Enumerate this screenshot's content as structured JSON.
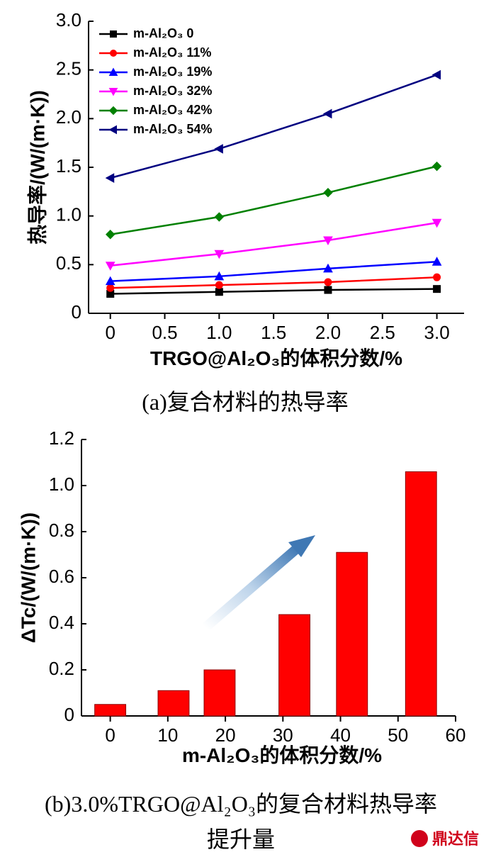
{
  "chart_data": [
    {
      "type": "line",
      "ylabel": "热导率/(W/(m·K))",
      "xlabel": "TRGO@Al₂O₃的体积分数/%",
      "caption": "(a)复合材料的热导率",
      "x": [
        0,
        1.0,
        2.0,
        3.0
      ],
      "xlim": [
        -0.2,
        3.25
      ],
      "ylim": [
        0,
        3.0
      ],
      "x_ticks": [
        "0",
        "0.5",
        "1.0",
        "1.5",
        "2.0",
        "2.5",
        "3.0"
      ],
      "y_ticks": [
        "0",
        "0.5",
        "1.0",
        "1.5",
        "2.0",
        "2.5",
        "3.0"
      ],
      "legend_position": "top-left",
      "series": [
        {
          "name": "m-Al₂O₃ 0",
          "color": "#000000",
          "marker": "square",
          "values": [
            0.2,
            0.22,
            0.24,
            0.25
          ]
        },
        {
          "name": "m-Al₂O₃ 11%",
          "color": "#ff0000",
          "marker": "circle",
          "values": [
            0.26,
            0.29,
            0.32,
            0.37
          ]
        },
        {
          "name": "m-Al₂O₃ 19%",
          "color": "#0000ff",
          "marker": "triangle-up",
          "values": [
            0.33,
            0.38,
            0.46,
            0.53
          ]
        },
        {
          "name": "m-Al₂O₃ 32%",
          "color": "#ff00ff",
          "marker": "triangle-down",
          "values": [
            0.49,
            0.61,
            0.75,
            0.93
          ]
        },
        {
          "name": "m-Al₂O₃ 42%",
          "color": "#008000",
          "marker": "diamond",
          "values": [
            0.81,
            0.99,
            1.24,
            1.51
          ]
        },
        {
          "name": "m-Al₂O₃ 54%",
          "color": "#000080",
          "marker": "triangle-left",
          "values": [
            1.39,
            1.69,
            2.05,
            2.45
          ]
        }
      ]
    },
    {
      "type": "bar",
      "ylabel": "ΔTc/(W/(m·K))",
      "xlabel": "m-Al₂O₃的体积分数/%",
      "caption_line1": "(b)3.0%TRGO@Al₂O₃的复合材料热导率",
      "caption_line2": "提升量",
      "x": [
        0,
        11,
        19,
        32,
        42,
        54
      ],
      "values": [
        0.05,
        0.11,
        0.2,
        0.44,
        0.71,
        1.06
      ],
      "bar_color": "#ff0000",
      "xlim": [
        -5,
        60
      ],
      "ylim": [
        0,
        1.2
      ],
      "x_ticks": [
        "0",
        "10",
        "20",
        "30",
        "40",
        "50",
        "60"
      ],
      "y_ticks": [
        "0",
        "0.2",
        "0.4",
        "0.6",
        "0.8",
        "1.0",
        "1.2"
      ],
      "annotation": "gradient arrow indicating increasing trend"
    }
  ],
  "watermark": "鼎达信"
}
